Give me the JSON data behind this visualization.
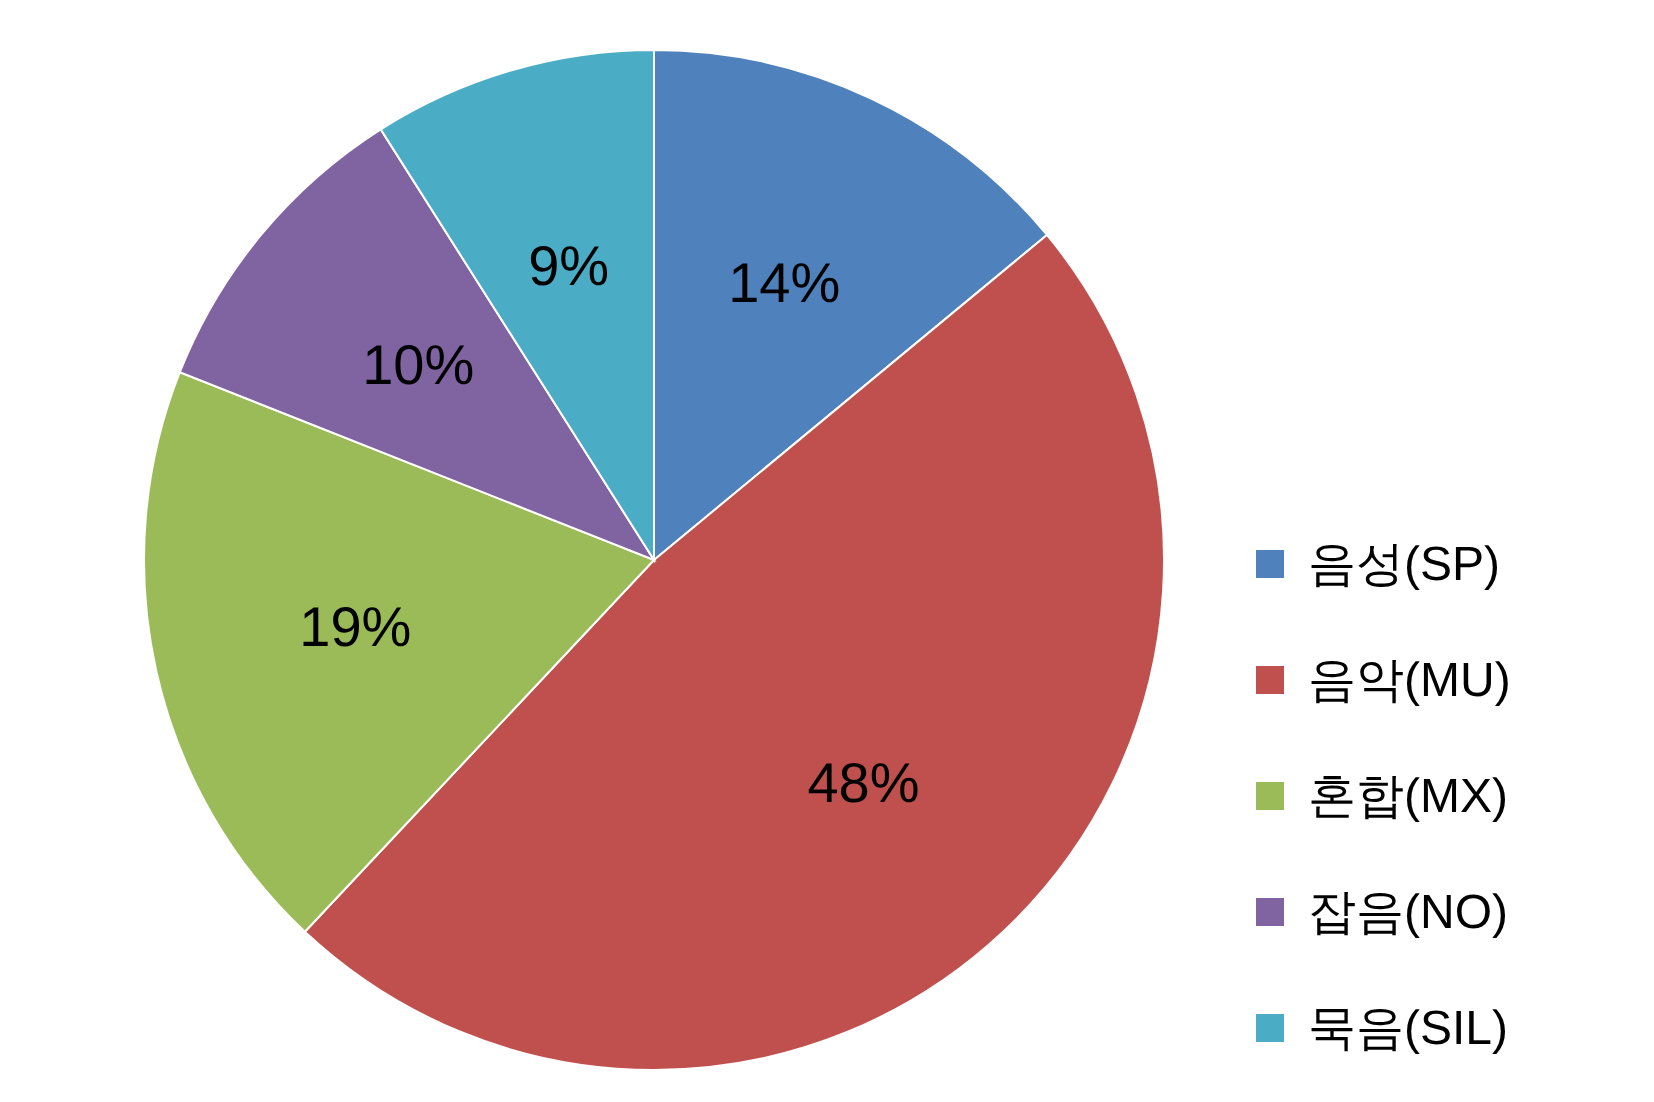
{
  "chart_data": {
    "type": "pie",
    "categories": [
      "음성(SP)",
      "음악(MU)",
      "혼합(MX)",
      "잡음(NO)",
      "묵음(SIL)"
    ],
    "values": [
      14,
      48,
      19,
      10,
      9
    ],
    "colors": [
      "#4f81bd",
      "#c0504d",
      "#9bbb59",
      "#8064a2",
      "#4bacc6"
    ],
    "value_labels": [
      "14%",
      "48%",
      "19%",
      "10%",
      "9%"
    ],
    "legend": "right"
  }
}
